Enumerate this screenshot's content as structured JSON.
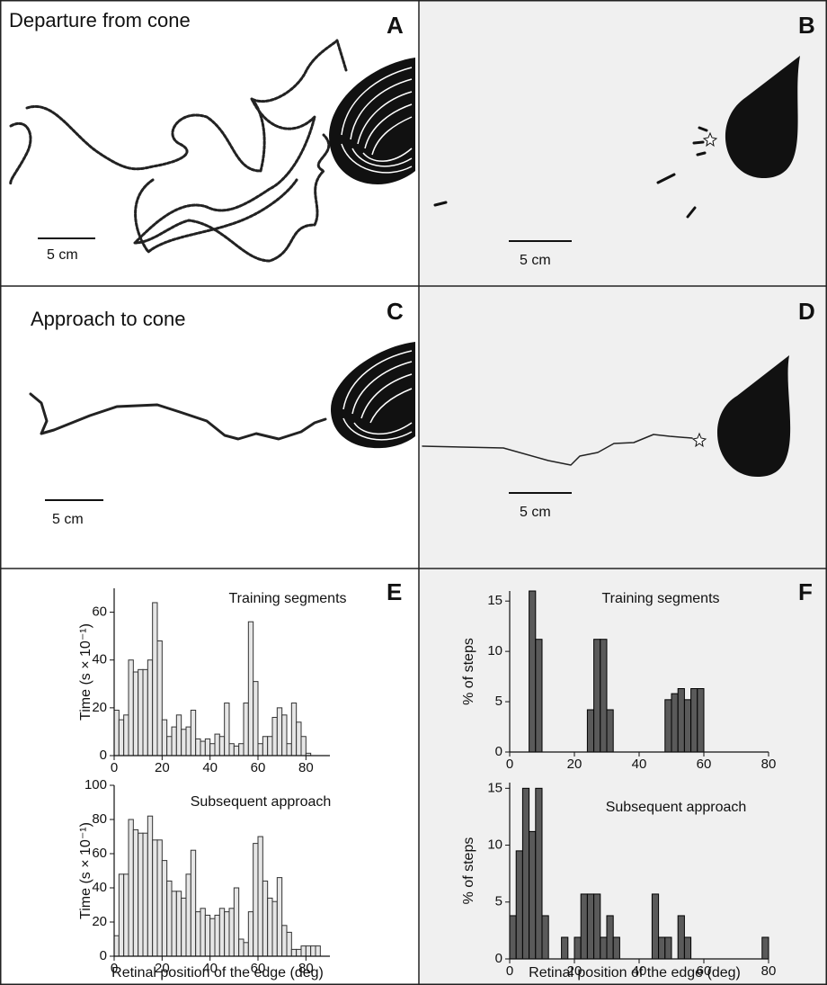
{
  "panels": {
    "A": {
      "label": "A",
      "title": "Departure from cone",
      "scale": "5 cm"
    },
    "B": {
      "label": "B",
      "scale": "5 cm"
    },
    "C": {
      "label": "C",
      "title": "Approach to cone",
      "scale": "5 cm"
    },
    "D": {
      "label": "D",
      "scale": "5 cm"
    },
    "E": {
      "label": "E"
    },
    "F": {
      "label": "F"
    }
  },
  "chart_data": [
    {
      "type": "histogram",
      "annotation": "Training segments",
      "ylabel": "Time (s × 10⁻¹)",
      "bins": [
        0,
        2,
        4,
        6,
        8,
        10,
        12,
        14,
        16,
        18,
        20,
        22,
        24,
        26,
        28,
        30,
        32,
        34,
        36,
        38,
        40,
        42,
        44,
        46,
        48,
        50,
        52,
        54,
        56,
        58,
        60,
        62,
        64,
        66,
        68,
        70,
        72,
        74,
        76,
        78,
        80,
        82
      ],
      "values": [
        19,
        15,
        17,
        40,
        35,
        36,
        36,
        40,
        64,
        48,
        15,
        8,
        12,
        17,
        11,
        12,
        19,
        7,
        6,
        7,
        5,
        9,
        8,
        22,
        5,
        4,
        5,
        22,
        56,
        31,
        5,
        8,
        8,
        16,
        20,
        17,
        5,
        22,
        14,
        8,
        1
      ],
      "xlim": [
        0,
        90
      ],
      "ylim": [
        0,
        70
      ],
      "xticks": [
        0,
        20,
        40,
        60,
        80
      ],
      "yticks": [
        0,
        20,
        40,
        60
      ],
      "color": "#e6e6e6",
      "edgecolor": "#333333"
    },
    {
      "type": "histogram",
      "annotation": "Subsequent approach",
      "ylabel": "Time (s × 10⁻¹)",
      "xlabel": "Retinal position of the edge (deg)",
      "bins": [
        0,
        2,
        4,
        6,
        8,
        10,
        12,
        14,
        16,
        18,
        20,
        22,
        24,
        26,
        28,
        30,
        32,
        34,
        36,
        38,
        40,
        42,
        44,
        46,
        48,
        50,
        52,
        54,
        56,
        58,
        60,
        62,
        64,
        66,
        68,
        70,
        72,
        74,
        76,
        78,
        80,
        82,
        84,
        86
      ],
      "values": [
        12,
        48,
        48,
        80,
        74,
        72,
        72,
        82,
        68,
        68,
        56,
        44,
        38,
        38,
        34,
        48,
        62,
        26,
        28,
        24,
        22,
        24,
        28,
        26,
        28,
        40,
        10,
        8,
        26,
        66,
        70,
        44,
        34,
        32,
        46,
        18,
        14,
        4,
        4,
        6,
        6,
        6,
        6
      ],
      "xlim": [
        0,
        90
      ],
      "ylim": [
        0,
        100
      ],
      "xticks": [
        0,
        20,
        40,
        60,
        80
      ],
      "yticks": [
        0,
        20,
        40,
        60,
        80,
        100
      ],
      "color": "#e6e6e6",
      "edgecolor": "#333333"
    },
    {
      "type": "histogram",
      "annotation": "Training segments",
      "ylabel": "% of steps",
      "bins": [
        6,
        8,
        10,
        12,
        14,
        16,
        18,
        20,
        22,
        24,
        26,
        28,
        30,
        32,
        34,
        36,
        38,
        40,
        42,
        44,
        46,
        48,
        50,
        52,
        54,
        56,
        58,
        60
      ],
      "values": [
        16,
        11.2,
        0,
        0,
        0,
        0,
        0,
        0,
        0,
        4.2,
        11.2,
        11.2,
        4.2,
        0,
        0,
        0,
        0,
        0,
        0,
        0,
        0,
        5.2,
        5.8,
        6.3,
        5.2,
        6.3,
        6.3
      ],
      "xlim": [
        0,
        80
      ],
      "ylim": [
        0,
        16
      ],
      "xticks": [
        0,
        20,
        40,
        60,
        80
      ],
      "yticks": [
        0,
        5,
        10,
        15
      ],
      "color": "#5a5a5a",
      "edgecolor": "#000000"
    },
    {
      "type": "histogram",
      "annotation": "Subsequent approach",
      "ylabel": "% of steps",
      "xlabel": "Retinal position of the edge (deg)",
      "bins": [
        0,
        2,
        4,
        6,
        8,
        10,
        12,
        14,
        16,
        18,
        20,
        22,
        24,
        26,
        28,
        30,
        32,
        34,
        36,
        38,
        40,
        42,
        44,
        46,
        48,
        50,
        52,
        54,
        56,
        58,
        60,
        62,
        64,
        66,
        68,
        70,
        72,
        74,
        76,
        78,
        80
      ],
      "values": [
        3.8,
        9.5,
        15,
        11.2,
        15,
        3.8,
        0,
        0,
        1.9,
        0,
        1.9,
        5.7,
        5.7,
        5.7,
        1.9,
        3.8,
        1.9,
        0,
        0,
        0,
        0,
        0,
        5.7,
        1.9,
        1.9,
        0,
        3.8,
        1.9,
        0,
        0,
        0,
        0,
        0,
        0,
        0,
        0,
        0,
        0,
        0,
        1.9
      ],
      "xlim": [
        0,
        80
      ],
      "ylim": [
        0,
        15.5
      ],
      "xticks": [
        0,
        20,
        40,
        60,
        80
      ],
      "yticks": [
        0,
        5,
        10,
        15
      ],
      "color": "#5a5a5a",
      "edgecolor": "#000000"
    }
  ]
}
